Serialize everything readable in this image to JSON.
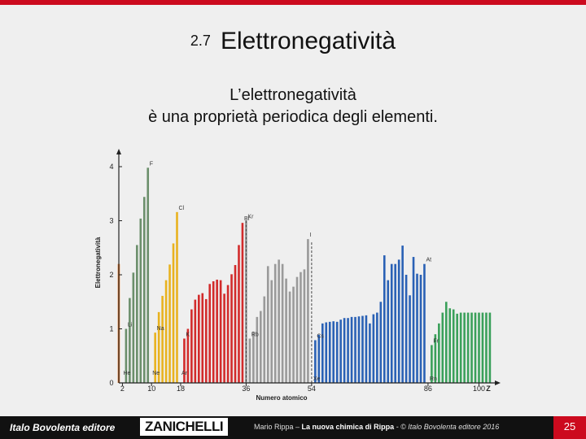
{
  "slide": {
    "section_number": "2.7",
    "title": "Elettronegatività",
    "subtitle_line1": "L’elettronegatività",
    "subtitle_line2": "è una proprietà periodica degli elementi."
  },
  "footer": {
    "publisher": "Italo Bovolenta editore",
    "brand": "ZANICHELLI",
    "author": "Mario Rippa –",
    "book": "La nuova chimica di Rippa",
    "copyright": " - © Italo Bovolenta editore 2016",
    "page": "25"
  },
  "chart_data": {
    "type": "bar",
    "xlabel": "Numero atomico",
    "ylabel": "Elettronegatività",
    "x_axis_symbol": "Z",
    "ylim": [
      0,
      4.2
    ],
    "xlim": [
      1,
      103
    ],
    "yticks": [
      0,
      1,
      2,
      3,
      4
    ],
    "xticks": [
      2,
      10,
      18,
      36,
      54,
      86,
      100
    ],
    "grid": false,
    "series": [
      {
        "color": "#e87b2c",
        "x": [
          1
        ],
        "values": [
          2.2
        ]
      },
      {
        "color": "#6b8f6b",
        "x": [
          3,
          4,
          5,
          6,
          7,
          8,
          9
        ],
        "values": [
          1.0,
          1.57,
          2.04,
          2.55,
          3.04,
          3.44,
          3.98
        ]
      },
      {
        "color": "#e8b21f",
        "x": [
          11,
          12,
          13,
          14,
          15,
          16,
          17
        ],
        "values": [
          0.93,
          1.31,
          1.61,
          1.9,
          2.19,
          2.58,
          3.16
        ]
      },
      {
        "color": "#d22b2b",
        "x": [
          19,
          20,
          21,
          22,
          23,
          24,
          25,
          26,
          27,
          28,
          29,
          30,
          31,
          32,
          33,
          34,
          35
        ],
        "values": [
          0.82,
          1.0,
          1.36,
          1.54,
          1.63,
          1.66,
          1.55,
          1.83,
          1.88,
          1.91,
          1.9,
          1.65,
          1.81,
          2.01,
          2.18,
          2.55,
          2.96
        ]
      },
      {
        "color": "#9a9a9a",
        "x": [
          36,
          37,
          38,
          39,
          40,
          41,
          42,
          43,
          44,
          45,
          46,
          47,
          48,
          49,
          50,
          51,
          52,
          53
        ],
        "values": [
          3.0,
          0.82,
          0.95,
          1.22,
          1.33,
          1.6,
          2.16,
          1.9,
          2.2,
          2.28,
          2.2,
          1.93,
          1.69,
          1.78,
          1.96,
          2.05,
          2.1,
          2.66
        ]
      },
      {
        "color": "#2a61b5",
        "x": [
          55,
          56,
          57,
          58,
          59,
          60,
          61,
          62,
          63,
          64,
          65,
          66,
          67,
          68,
          69,
          70,
          71,
          72,
          73,
          74,
          75,
          76,
          77,
          78,
          79,
          80,
          81,
          82,
          83,
          84,
          85
        ],
        "values": [
          0.79,
          0.89,
          1.1,
          1.12,
          1.13,
          1.14,
          1.13,
          1.17,
          1.2,
          1.2,
          1.22,
          1.22,
          1.23,
          1.24,
          1.25,
          1.1,
          1.27,
          1.3,
          1.5,
          2.36,
          1.9,
          2.2,
          2.2,
          2.28,
          2.54,
          2.0,
          1.62,
          2.33,
          2.02,
          2.0,
          2.2
        ]
      },
      {
        "color": "#3aa05a",
        "x": [
          87,
          88,
          89,
          90,
          91,
          92,
          93,
          94,
          95,
          96,
          97,
          98,
          99,
          100,
          101,
          102,
          103
        ],
        "values": [
          0.7,
          0.9,
          1.1,
          1.3,
          1.5,
          1.38,
          1.36,
          1.28,
          1.3,
          1.3,
          1.3,
          1.3,
          1.3,
          1.3,
          1.3,
          1.3,
          1.3
        ]
      }
    ],
    "noble_gas_values": [
      {
        "x": 36,
        "value": 3.0
      },
      {
        "x": 54,
        "value": 2.6
      }
    ],
    "annotations": [
      {
        "text": "F",
        "z": 9,
        "position": "above"
      },
      {
        "text": "Cl",
        "z": 17,
        "position": "above"
      },
      {
        "text": "Br",
        "z": 35,
        "position": "above"
      },
      {
        "text": "Kr",
        "z": 36,
        "position": "above"
      },
      {
        "text": "I",
        "z": 53,
        "position": "above"
      },
      {
        "text": "Xe",
        "z": 54,
        "position": "above"
      },
      {
        "text": "At",
        "z": 85,
        "position": "above"
      },
      {
        "text": "Rn",
        "z": 86,
        "position": "above"
      },
      {
        "text": "Li",
        "z": 3,
        "position": "above"
      },
      {
        "text": "Na",
        "z": 11,
        "position": "above"
      },
      {
        "text": "K",
        "z": 19,
        "position": "above"
      },
      {
        "text": "Rb",
        "z": 37,
        "position": "above"
      },
      {
        "text": "Cs",
        "z": 55,
        "position": "above"
      },
      {
        "text": "Fr",
        "z": 87,
        "position": "above"
      },
      {
        "text": "He",
        "z": 2,
        "position": "bottom"
      },
      {
        "text": "Ne",
        "z": 10,
        "position": "bottom"
      },
      {
        "text": "Ar",
        "z": 18,
        "position": "bottom"
      }
    ]
  }
}
